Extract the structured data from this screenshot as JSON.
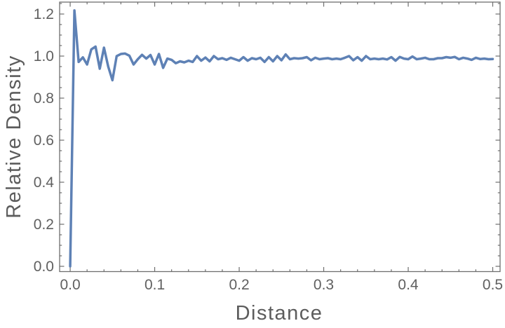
{
  "chart_data": {
    "type": "line",
    "title": "",
    "xlabel": "Distance",
    "ylabel": "Relative Density",
    "x": [
      0,
      0.005,
      0.01,
      0.015,
      0.02,
      0.025,
      0.03,
      0.035,
      0.04,
      0.045,
      0.05,
      0.055,
      0.06,
      0.065,
      0.07,
      0.075,
      0.08,
      0.085,
      0.09,
      0.095,
      0.1,
      0.105,
      0.11,
      0.115,
      0.12,
      0.125,
      0.13,
      0.135,
      0.14,
      0.145,
      0.15,
      0.155,
      0.16,
      0.165,
      0.17,
      0.175,
      0.18,
      0.185,
      0.19,
      0.195,
      0.2,
      0.205,
      0.21,
      0.215,
      0.22,
      0.225,
      0.23,
      0.235,
      0.24,
      0.245,
      0.25,
      0.255,
      0.26,
      0.265,
      0.27,
      0.275,
      0.28,
      0.285,
      0.29,
      0.295,
      0.3,
      0.305,
      0.31,
      0.315,
      0.32,
      0.325,
      0.33,
      0.335,
      0.34,
      0.345,
      0.35,
      0.355,
      0.36,
      0.365,
      0.37,
      0.375,
      0.38,
      0.385,
      0.39,
      0.395,
      0.4,
      0.405,
      0.41,
      0.415,
      0.42,
      0.425,
      0.43,
      0.435,
      0.44,
      0.445,
      0.45,
      0.455,
      0.46,
      0.465,
      0.47,
      0.475,
      0.48,
      0.485,
      0.49,
      0.495,
      0.5
    ],
    "y": [
      0,
      1.217,
      0.972,
      0.994,
      0.96,
      1.032,
      1.045,
      0.94,
      1.04,
      0.95,
      0.885,
      1.0,
      1.01,
      1.012,
      1.002,
      0.96,
      0.985,
      1.006,
      0.988,
      1.005,
      0.96,
      1.01,
      0.944,
      0.988,
      0.982,
      0.966,
      0.975,
      0.97,
      0.978,
      0.972,
      1.0,
      0.978,
      0.993,
      0.975,
      1.0,
      0.985,
      0.99,
      0.982,
      0.992,
      0.985,
      0.978,
      0.995,
      0.978,
      0.99,
      0.985,
      0.992,
      0.972,
      0.995,
      0.975,
      1.0,
      0.98,
      1.008,
      0.985,
      0.99,
      0.988,
      0.99,
      0.995,
      0.98,
      0.992,
      0.985,
      0.988,
      0.99,
      0.985,
      0.988,
      0.985,
      0.992,
      1.0,
      0.98,
      0.995,
      0.978,
      1.0,
      0.985,
      0.988,
      0.985,
      0.988,
      0.984,
      0.995,
      0.978,
      0.996,
      0.988,
      0.985,
      0.998,
      0.985,
      0.988,
      0.992,
      0.985,
      0.985,
      0.99,
      0.99,
      0.995,
      0.992,
      0.996,
      0.985,
      0.992,
      0.988,
      0.982,
      0.992,
      0.986,
      0.988,
      0.985,
      0.986
    ],
    "xlim": [
      -0.0125,
      0.5087
    ],
    "ylim": [
      -0.025,
      1.2567
    ],
    "x_major_ticks": [
      0,
      0.1,
      0.2,
      0.3,
      0.4,
      0.5
    ],
    "x_tick_labels": [
      "0.0",
      "0.1",
      "0.2",
      "0.3",
      "0.4",
      "0.5"
    ],
    "x_minor_step": 0.02,
    "y_major_ticks": [
      0,
      0.2,
      0.4,
      0.6,
      0.8,
      1.0,
      1.2
    ],
    "y_tick_labels": [
      "0.0",
      "0.2",
      "0.4",
      "0.6",
      "0.8",
      "1.0",
      "1.2"
    ],
    "y_minor_step": 0.05,
    "grid": false,
    "legend": null,
    "frame": true,
    "line_color": "#5e81b5",
    "frame_color": "#6e6e6e",
    "tick_label_color": "#606060",
    "axis_label_color": "#5c5c5c",
    "background": "#ffffff"
  }
}
